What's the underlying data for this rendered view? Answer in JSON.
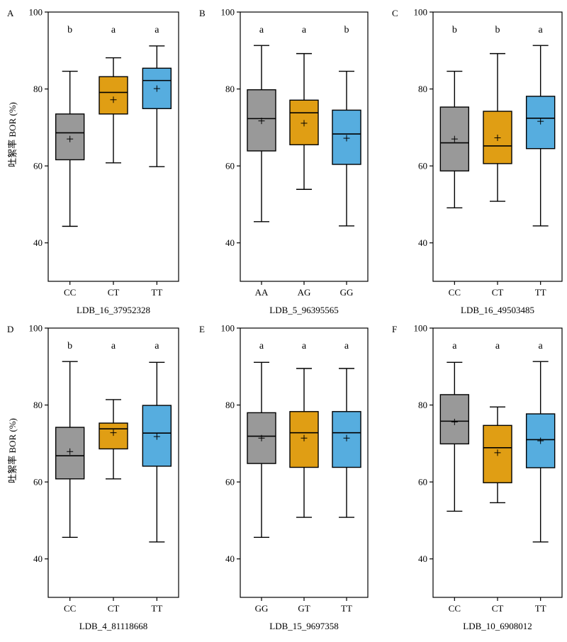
{
  "ylabel": "吐絮率 BOR (%)",
  "colors": [
    "#999999",
    "#E09E14",
    "#56ADDF"
  ],
  "chart_data": [
    {
      "type": "box",
      "panel_label": "A",
      "xlabel": "LDB_16_37952328",
      "ylim": [
        30,
        100
      ],
      "yticks": [
        40,
        60,
        80,
        100
      ],
      "categories": [
        "CC",
        "CT",
        "TT"
      ],
      "letters": [
        "b",
        "a",
        "a"
      ],
      "boxes": [
        {
          "min": 44.3,
          "q1": 61.6,
          "median": 68.6,
          "q3": 73.5,
          "max": 84.6,
          "mean": 67.0
        },
        {
          "min": 60.8,
          "q1": 73.5,
          "median": 79.1,
          "q3": 83.2,
          "max": 88.1,
          "mean": 77.2
        },
        {
          "min": 59.8,
          "q1": 74.9,
          "median": 82.2,
          "q3": 85.4,
          "max": 91.2,
          "mean": 80.1
        }
      ]
    },
    {
      "type": "box",
      "panel_label": "B",
      "xlabel": "LDB_5_96395565",
      "ylim": [
        30,
        100
      ],
      "yticks": [
        40,
        60,
        80,
        100
      ],
      "categories": [
        "AA",
        "AG",
        "GG"
      ],
      "letters": [
        "a",
        "a",
        "b"
      ],
      "boxes": [
        {
          "min": 45.5,
          "q1": 63.9,
          "median": 72.3,
          "q3": 79.8,
          "max": 91.3,
          "mean": 71.7
        },
        {
          "min": 53.9,
          "q1": 65.5,
          "median": 73.8,
          "q3": 77.1,
          "max": 89.2,
          "mean": 71.1
        },
        {
          "min": 44.4,
          "q1": 60.4,
          "median": 68.3,
          "q3": 74.5,
          "max": 84.6,
          "mean": 67.2
        }
      ]
    },
    {
      "type": "box",
      "panel_label": "C",
      "xlabel": "LDB_16_49503485",
      "ylim": [
        30,
        100
      ],
      "yticks": [
        40,
        60,
        80,
        100
      ],
      "categories": [
        "CC",
        "CT",
        "TT"
      ],
      "letters": [
        "b",
        "b",
        "a"
      ],
      "boxes": [
        {
          "min": 49.1,
          "q1": 58.7,
          "median": 66.0,
          "q3": 75.3,
          "max": 84.6,
          "mean": 67.0
        },
        {
          "min": 50.8,
          "q1": 60.6,
          "median": 65.2,
          "q3": 74.2,
          "max": 89.2,
          "mean": 67.3
        },
        {
          "min": 44.4,
          "q1": 64.5,
          "median": 72.4,
          "q3": 78.1,
          "max": 91.3,
          "mean": 71.6
        }
      ]
    },
    {
      "type": "box",
      "panel_label": "D",
      "xlabel": "LDB_4_81118668",
      "ylim": [
        30,
        100
      ],
      "yticks": [
        40,
        60,
        80,
        100
      ],
      "categories": [
        "CC",
        "CT",
        "TT"
      ],
      "letters": [
        "b",
        "a",
        "a"
      ],
      "boxes": [
        {
          "min": 45.6,
          "q1": 60.8,
          "median": 66.8,
          "q3": 74.2,
          "max": 91.3,
          "mean": 67.9
        },
        {
          "min": 60.8,
          "q1": 68.6,
          "median": 73.8,
          "q3": 75.3,
          "max": 81.4,
          "mean": 72.8
        },
        {
          "min": 44.4,
          "q1": 64.1,
          "median": 72.7,
          "q3": 79.9,
          "max": 91.1,
          "mean": 71.8
        }
      ]
    },
    {
      "type": "box",
      "panel_label": "E",
      "xlabel": "LDB_15_9697358",
      "ylim": [
        30,
        100
      ],
      "yticks": [
        40,
        60,
        80,
        100
      ],
      "categories": [
        "GG",
        "GT",
        "TT"
      ],
      "letters": [
        "a",
        "a",
        "a"
      ],
      "boxes": [
        {
          "min": 45.6,
          "q1": 64.8,
          "median": 71.9,
          "q3": 78.0,
          "max": 91.1,
          "mean": 71.4
        },
        {
          "min": 50.8,
          "q1": 63.8,
          "median": 72.8,
          "q3": 78.3,
          "max": 89.5,
          "mean": 71.4
        },
        {
          "min": 50.8,
          "q1": 63.8,
          "median": 72.8,
          "q3": 78.3,
          "max": 89.5,
          "mean": 71.4
        }
      ]
    },
    {
      "type": "box",
      "panel_label": "F",
      "xlabel": "LDB_10_6908012",
      "ylim": [
        30,
        100
      ],
      "yticks": [
        40,
        60,
        80,
        100
      ],
      "categories": [
        "CC",
        "CT",
        "TT"
      ],
      "letters": [
        "a",
        "a",
        "a"
      ],
      "boxes": [
        {
          "min": 52.4,
          "q1": 69.9,
          "median": 75.8,
          "q3": 82.7,
          "max": 91.1,
          "mean": 75.6
        },
        {
          "min": 54.6,
          "q1": 59.8,
          "median": 68.9,
          "q3": 74.7,
          "max": 79.5,
          "mean": 67.6
        },
        {
          "min": 44.4,
          "q1": 63.7,
          "median": 71.0,
          "q3": 77.7,
          "max": 91.3,
          "mean": 70.7
        }
      ]
    }
  ]
}
